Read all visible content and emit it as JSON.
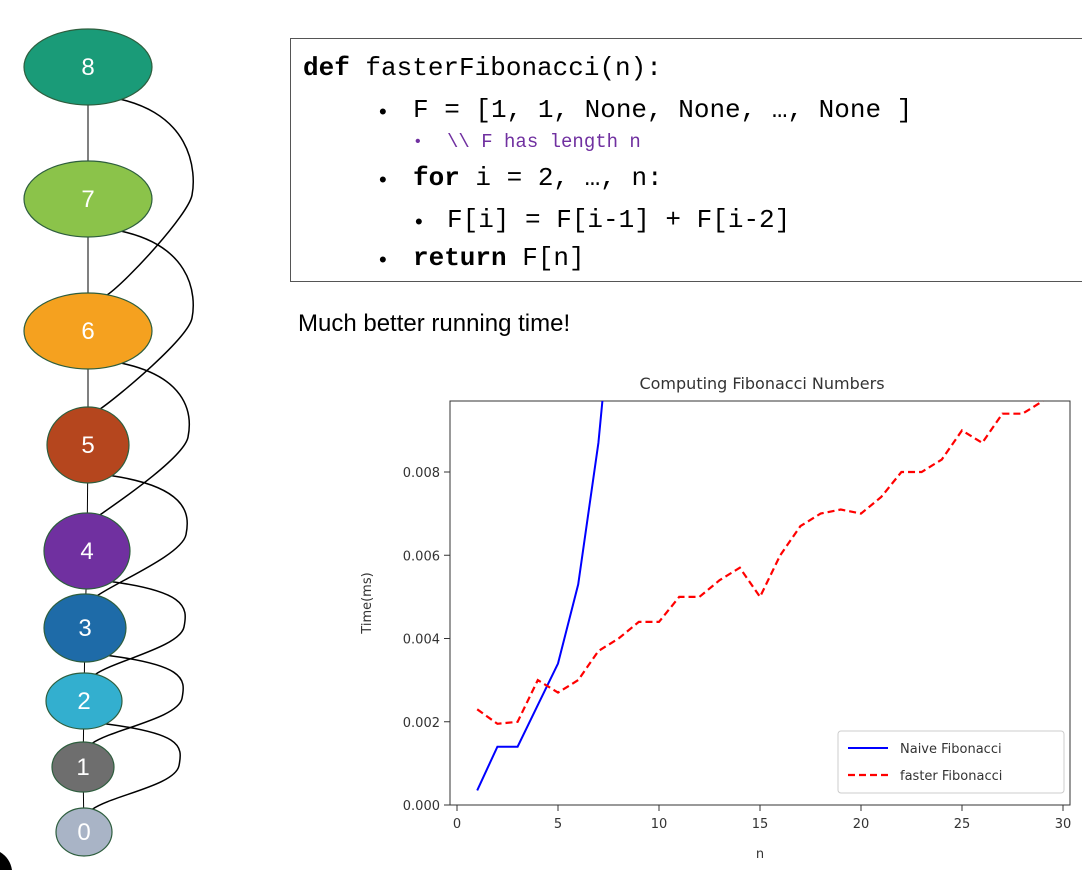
{
  "diagram": {
    "nodes": [
      {
        "label": "8",
        "color": "#1A9B78"
      },
      {
        "label": "7",
        "color": "#8BC34A"
      },
      {
        "label": "6",
        "color": "#F5A11F"
      },
      {
        "label": "5",
        "color": "#B5461E"
      },
      {
        "label": "4",
        "color": "#7030A0"
      },
      {
        "label": "3",
        "color": "#1E6BA8"
      },
      {
        "label": "2",
        "color": "#33AFCF"
      },
      {
        "label": "1",
        "color": "#6E6E6E"
      },
      {
        "label": "0",
        "color": "#A9B4C6"
      }
    ]
  },
  "code": {
    "line1_kw": "def",
    "line1_rest": " fasterFibonacci(n):",
    "line2": "F = [1, 1, None, None, …, None ]",
    "line3_comment": "\\\\ F has length n",
    "line4_kw": "for",
    "line4_rest": " i = 2, …, n:",
    "line5": "F[i] = F[i-1] + F[i-2]",
    "line6_kw": "return",
    "line6_rest": " F[n]"
  },
  "caption": "Much better running time!",
  "chart_data": {
    "type": "line",
    "title": "Computing Fibonacci Numbers",
    "xlabel": "n",
    "ylabel": "Time(ms)",
    "xlim": [
      0,
      30
    ],
    "ylim": [
      0,
      0.0098
    ],
    "xticks": [
      "0",
      "5",
      "10",
      "15",
      "20",
      "25",
      "30"
    ],
    "yticks": [
      "0.000",
      "0.002",
      "0.004",
      "0.006",
      "0.008"
    ],
    "legend_position": "bottom-right",
    "series": [
      {
        "name": "Naive Fibonacci",
        "color": "#0000FF",
        "style": "solid",
        "x": [
          1,
          2,
          3,
          4,
          5,
          6,
          7,
          7.2
        ],
        "y": [
          0.00035,
          0.0014,
          0.0014,
          0.0024,
          0.0034,
          0.0053,
          0.0087,
          0.0098
        ]
      },
      {
        "name": "faster Fibonacci",
        "color": "#FF0000",
        "style": "dashed",
        "x": [
          1,
          2,
          3,
          4,
          5,
          6,
          7,
          8,
          9,
          10,
          11,
          12,
          13,
          14,
          15,
          16,
          17,
          18,
          19,
          20,
          21,
          22,
          23,
          24,
          25,
          26,
          27,
          28,
          29
        ],
        "y": [
          0.0023,
          0.00195,
          0.002,
          0.003,
          0.0027,
          0.003,
          0.0037,
          0.004,
          0.0044,
          0.0044,
          0.005,
          0.005,
          0.0054,
          0.0057,
          0.005,
          0.006,
          0.0067,
          0.007,
          0.0071,
          0.007,
          0.0074,
          0.008,
          0.008,
          0.0083,
          0.009,
          0.0087,
          0.0094,
          0.0094,
          0.0098
        ]
      }
    ]
  }
}
